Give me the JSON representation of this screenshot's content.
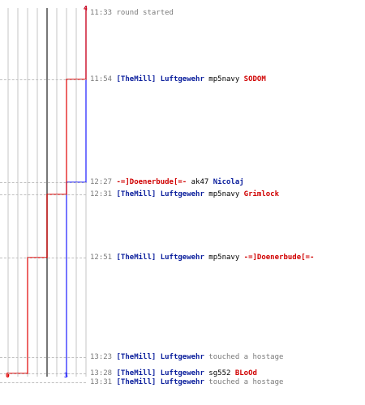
{
  "scoreboard": {
    "blue": {
      "color": "#1a1aff",
      "start_score": "4",
      "end_score": "3"
    },
    "red": {
      "color": "#e00000",
      "start_score": "4",
      "end_score": "0"
    }
  },
  "log": [
    {
      "time": "11:33",
      "parts": [
        {
          "text": "round started",
          "style": "plain"
        }
      ]
    },
    {
      "time": "11:54",
      "parts": [
        {
          "text": "[TheMill] Luftgewehr",
          "style": "blue"
        },
        {
          "text": " mp5navy ",
          "style": "black"
        },
        {
          "text": "SODOM",
          "style": "red"
        }
      ]
    },
    {
      "time": "12:27",
      "parts": [
        {
          "text": "-=]Doenerbude[=-",
          "style": "red"
        },
        {
          "text": " ak47 ",
          "style": "black"
        },
        {
          "text": "Nicolaj",
          "style": "blue"
        }
      ]
    },
    {
      "time": "12:31",
      "parts": [
        {
          "text": "[TheMill] Luftgewehr",
          "style": "blue"
        },
        {
          "text": " mp5navy ",
          "style": "black"
        },
        {
          "text": "Grimlock",
          "style": "red"
        }
      ]
    },
    {
      "time": "12:51",
      "parts": [
        {
          "text": "[TheMill] Luftgewehr",
          "style": "blue"
        },
        {
          "text": " mp5navy ",
          "style": "black"
        },
        {
          "text": "-=]Doenerbude[=-",
          "style": "red"
        }
      ]
    },
    {
      "time": "13:23",
      "parts": [
        {
          "text": "[TheMill] Luftgewehr",
          "style": "blue"
        },
        {
          "text": " touched a hostage",
          "style": "plain"
        }
      ]
    },
    {
      "time": "13:28",
      "parts": [
        {
          "text": "[TheMill] Luftgewehr",
          "style": "blue"
        },
        {
          "text": " sg552 ",
          "style": "black"
        },
        {
          "text": "BLoOd",
          "style": "red"
        }
      ]
    },
    {
      "time": "13:31",
      "parts": [
        {
          "text": "[TheMill] Luftgewehr",
          "style": "blue"
        },
        {
          "text": " touched a hostage",
          "style": "plain"
        }
      ]
    }
  ],
  "chart_data": {
    "type": "line",
    "x": [
      "11:33",
      "11:54",
      "12:27",
      "12:31",
      "12:51",
      "13:23",
      "13:28",
      "13:31"
    ],
    "series": [
      {
        "color": "#1a1aff",
        "values": [
          4,
          4,
          3,
          3,
          3,
          3,
          3,
          3
        ]
      },
      {
        "color": "#e00000",
        "values": [
          4,
          3,
          3,
          2,
          1,
          1,
          0,
          0
        ]
      }
    ],
    "ylim": [
      0,
      4
    ],
    "grid": true
  }
}
